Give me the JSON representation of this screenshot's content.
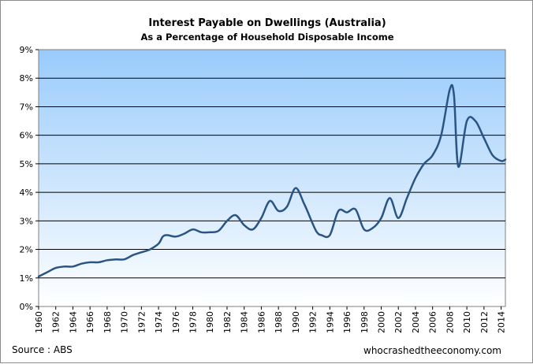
{
  "chart_title": "Interest Payable  on Dwellings  (Australia)",
  "chart_subtitle": "As a Percentage of Household Disposable Income",
  "source": "Source : ABS",
  "watermark": "whocrashedtheeconomy.com",
  "colors": {
    "line": "#2a5583",
    "grad_top": "#99cbfb",
    "grad_bottom": "#ffffff",
    "grid": "#000000"
  },
  "chart_data": {
    "type": "line",
    "title": "Interest Payable  on Dwellings  (Australia)",
    "subtitle": "As a Percentage of Household Disposable Income",
    "xlabel": "",
    "ylabel": "",
    "xlim": [
      1960,
      2014.5
    ],
    "ylim": [
      0,
      9
    ],
    "grid": true,
    "y_ticks": [
      "0%",
      "1%",
      "2%",
      "3%",
      "4%",
      "5%",
      "6%",
      "7%",
      "8%",
      "9%"
    ],
    "x_ticks": [
      "1960",
      "1962",
      "1964",
      "1966",
      "1968",
      "1970",
      "1972",
      "1974",
      "1976",
      "1978",
      "1980",
      "1982",
      "1984",
      "1986",
      "1988",
      "1990",
      "1992",
      "1994",
      "1996",
      "1998",
      "2000",
      "2002",
      "2004",
      "2006",
      "2008",
      "2010",
      "2012",
      "2014"
    ],
    "series": [
      {
        "x": [
          1960,
          1961,
          1962,
          1963,
          1964,
          1965,
          1966,
          1967,
          1968,
          1969,
          1970,
          1971,
          1972,
          1973,
          1974,
          1974.5,
          1975,
          1976,
          1977,
          1978,
          1979,
          1980,
          1981,
          1982,
          1983,
          1984,
          1985,
          1986,
          1987,
          1988,
          1989,
          1990,
          1991,
          1992,
          1992.5,
          1993,
          1994,
          1995,
          1996,
          1997,
          1998,
          1999,
          2000,
          2001,
          2002,
          2003,
          2004,
          2005,
          2006,
          2007,
          2008,
          2008.5,
          2009,
          2010,
          2011,
          2012,
          2013,
          2014,
          2014.5
        ],
        "y": [
          1.05,
          1.2,
          1.35,
          1.4,
          1.4,
          1.5,
          1.55,
          1.55,
          1.62,
          1.65,
          1.65,
          1.8,
          1.9,
          2.0,
          2.2,
          2.45,
          2.5,
          2.45,
          2.55,
          2.7,
          2.6,
          2.6,
          2.65,
          3.0,
          3.2,
          2.85,
          2.7,
          3.1,
          3.7,
          3.35,
          3.5,
          4.15,
          3.6,
          2.9,
          2.6,
          2.5,
          2.5,
          3.35,
          3.3,
          3.4,
          2.7,
          2.75,
          3.1,
          3.8,
          3.1,
          3.8,
          4.5,
          5.0,
          5.3,
          6.0,
          7.6,
          7.4,
          4.9,
          6.5,
          6.5,
          5.9,
          5.3,
          5.1,
          5.15
        ]
      }
    ]
  }
}
